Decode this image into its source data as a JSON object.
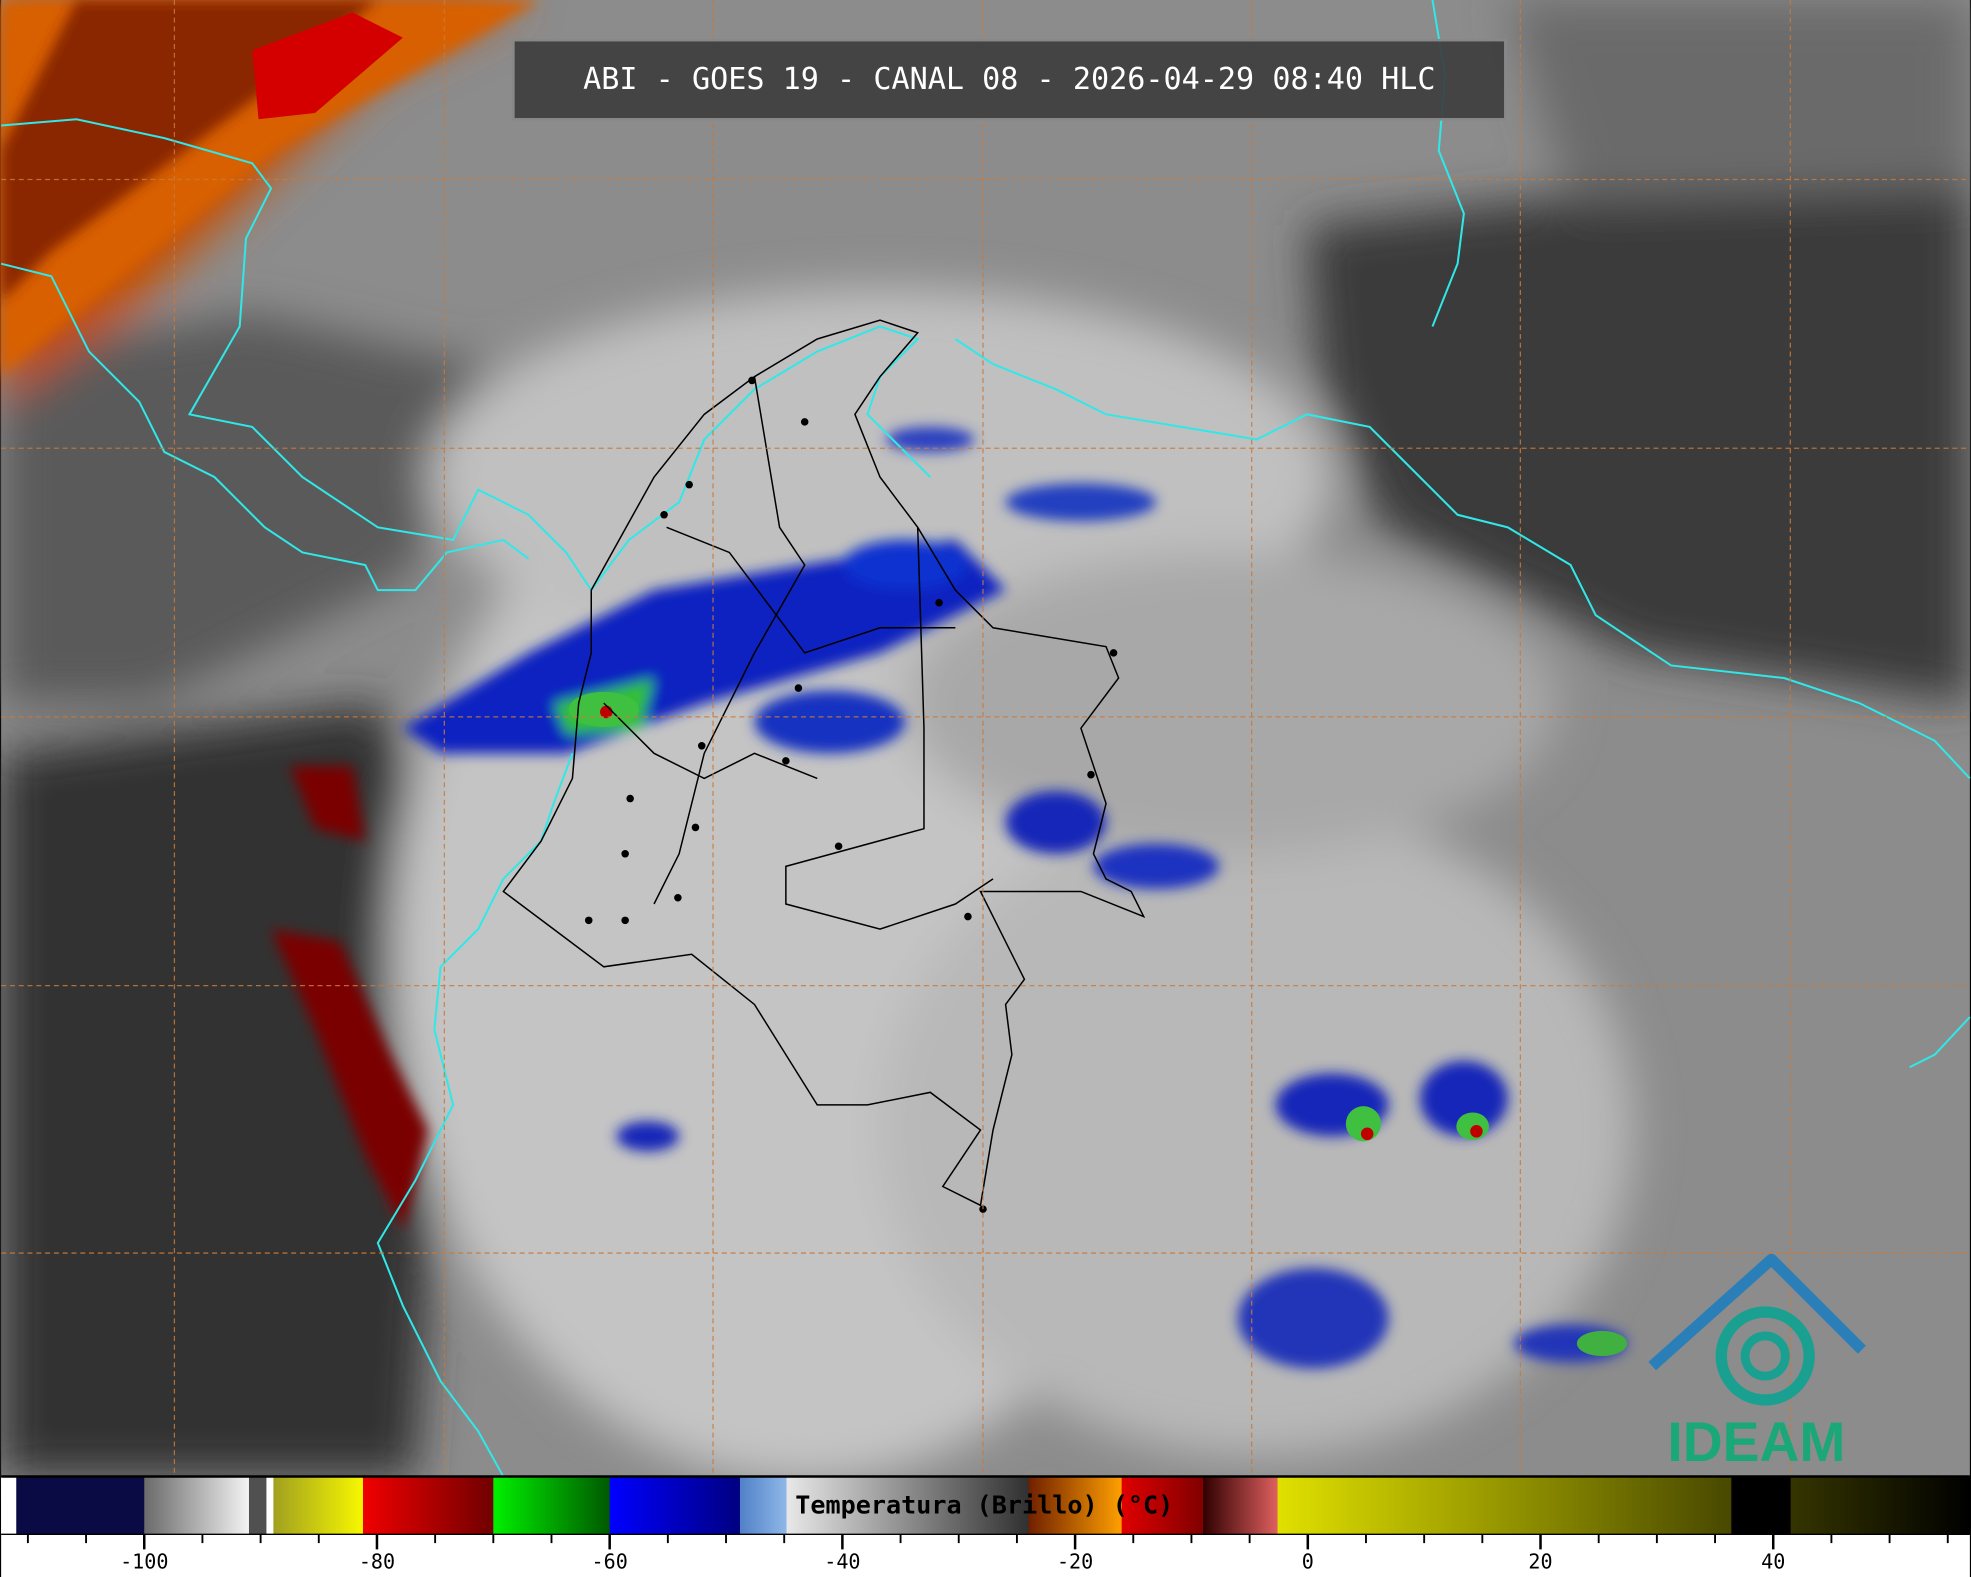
{
  "header": {
    "title": "ABI - GOES 19 - CANAL 08 - 2026-04-29 08:40 HLC"
  },
  "colorbar": {
    "label": "Temperatura (Brillo) (°C)",
    "range": [
      -112.3,
      56.9
    ],
    "ticks": [
      -100,
      -80,
      -60,
      -40,
      -20,
      0,
      20,
      40
    ],
    "minor_tick_step": 5,
    "segments": [
      {
        "from": -112.3,
        "to": -111,
        "colors": [
          "#ffffff",
          "#ffffff"
        ]
      },
      {
        "from": -111,
        "to": -100,
        "colors": [
          "#0a0a45",
          "#0a0a45"
        ]
      },
      {
        "from": -100,
        "to": -91,
        "colors": [
          "#6a6a6a",
          "#f4f4f4"
        ]
      },
      {
        "from": -91,
        "to": -89.5,
        "colors": [
          "#505050",
          "#505050"
        ]
      },
      {
        "from": -89.5,
        "to": -88.9,
        "colors": [
          "#ffffff",
          "#ffffff"
        ]
      },
      {
        "from": -88.9,
        "to": -81.2,
        "colors": [
          "#a0a020",
          "#f8f800"
        ]
      },
      {
        "from": -81.2,
        "to": -70,
        "colors": [
          "#f00000",
          "#700000"
        ]
      },
      {
        "from": -70,
        "to": -60,
        "colors": [
          "#00f000",
          "#005800"
        ]
      },
      {
        "from": -60,
        "to": -48.8,
        "colors": [
          "#0000ff",
          "#000080"
        ]
      },
      {
        "from": -48.8,
        "to": -44.8,
        "colors": [
          "#5080c8",
          "#90b8e8"
        ]
      },
      {
        "from": -44.8,
        "to": -24,
        "colors": [
          "#e8e8e8",
          "#303030"
        ]
      },
      {
        "from": -24,
        "to": -16,
        "colors": [
          "#702000",
          "#ffa000"
        ]
      },
      {
        "from": -16,
        "to": -9,
        "colors": [
          "#e00000",
          "#800000"
        ]
      },
      {
        "from": -9,
        "to": -2.6,
        "colors": [
          "#300000",
          "#e06060"
        ]
      },
      {
        "from": -2.6,
        "to": 36.4,
        "colors": [
          "#e0e000",
          "#484800"
        ]
      },
      {
        "from": 36.4,
        "to": 41.5,
        "colors": [
          "#000000",
          "#000000"
        ]
      },
      {
        "from": 41.5,
        "to": 56.9,
        "colors": [
          "#353500",
          "#000000"
        ]
      }
    ]
  },
  "logo": {
    "text": "IDEAM"
  }
}
